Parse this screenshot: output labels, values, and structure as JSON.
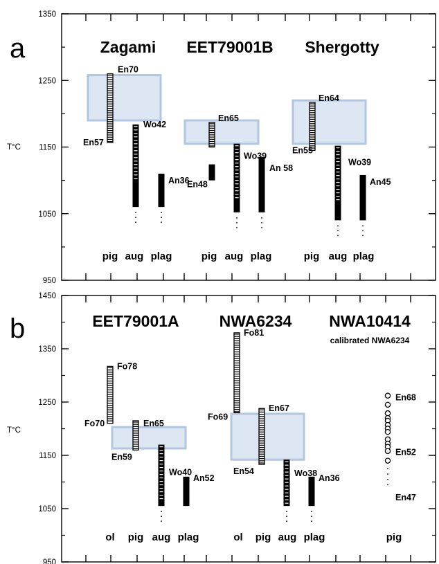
{
  "chart_data": [
    {
      "type": "range",
      "panel_label": "a",
      "ylabel": "T°C",
      "ylim": [
        950,
        1350
      ],
      "yticks": [
        950,
        1050,
        1150,
        1250,
        1350
      ],
      "groups": [
        {
          "title": "Zagami",
          "categories": [
            "pig",
            "aug",
            "plag"
          ]
        },
        {
          "title": "EET79001B",
          "categories": [
            "pig",
            "aug",
            "plag"
          ]
        },
        {
          "title": "Shergotty",
          "categories": [
            "pig",
            "aug",
            "plag"
          ]
        }
      ],
      "bars": [
        {
          "group": 0,
          "category": "pig",
          "from": 1157,
          "to": 1260,
          "style": "hatched",
          "top_label": "En70",
          "bottom_label": "En57"
        },
        {
          "group": 0,
          "category": "aug",
          "from": 1060,
          "to": 1184,
          "style": "solid_dashes",
          "top_label": "Wo42",
          "dotted_below": true
        },
        {
          "group": 0,
          "category": "plag",
          "from": 1060,
          "to": 1110,
          "style": "solid",
          "top_label": "An36",
          "dotted_below": true
        },
        {
          "group": 1,
          "category": "pig",
          "from": 1150,
          "to": 1187,
          "style": "hatched",
          "top_label": "En65"
        },
        {
          "group": 1,
          "category": "pig_low",
          "from": 1100,
          "to": 1124,
          "style": "solid",
          "bottom_label": "En48"
        },
        {
          "group": 1,
          "category": "aug",
          "from": 1052,
          "to": 1155,
          "style": "solid_dashes",
          "top_label": "Wo39",
          "dotted_below": true
        },
        {
          "group": 1,
          "category": "plag",
          "from": 1052,
          "to": 1135,
          "style": "solid",
          "top_label": "An 58",
          "dotted_below": true
        },
        {
          "group": 2,
          "category": "pig",
          "from": 1145,
          "to": 1217,
          "style": "hatched",
          "top_label": "En64",
          "bottom_label": "En55"
        },
        {
          "group": 2,
          "category": "aug",
          "from": 1040,
          "to": 1152,
          "style": "solid_dashes",
          "top_label": "Wo39",
          "dotted_below": true
        },
        {
          "group": 2,
          "category": "plag",
          "from": 1040,
          "to": 1108,
          "style": "solid",
          "top_label": "An45",
          "dotted_below": true
        }
      ],
      "boxes": [
        {
          "group": 0,
          "from": 1190,
          "to": 1258
        },
        {
          "group": 1,
          "from": 1155,
          "to": 1190
        },
        {
          "group": 2,
          "from": 1155,
          "to": 1220
        }
      ]
    },
    {
      "type": "range",
      "panel_label": "b",
      "ylabel": "T°C",
      "ylim": [
        950,
        1450
      ],
      "yticks": [
        950,
        1050,
        1150,
        1250,
        1350,
        1450
      ],
      "groups": [
        {
          "title": "EET79001A",
          "categories": [
            "ol",
            "pig",
            "aug",
            "plag"
          ]
        },
        {
          "title": "NWA6234",
          "categories": [
            "ol",
            "pig",
            "aug",
            "plag"
          ]
        },
        {
          "title": "NWA10414",
          "subtitle": "calibrated NWA6234",
          "categories": [
            "pig"
          ]
        }
      ],
      "bars": [
        {
          "group": 0,
          "category": "ol",
          "from": 1210,
          "to": 1317,
          "style": "hatched",
          "top_label": "Fo78",
          "bottom_label": "Fo70"
        },
        {
          "group": 0,
          "category": "pig",
          "from": 1160,
          "to": 1215,
          "style": "hatched",
          "top_label": "En65",
          "bottom_label": "En59"
        },
        {
          "group": 0,
          "category": "aug",
          "from": 1055,
          "to": 1170,
          "style": "solid_dashes",
          "top_label": "Wo40",
          "dotted_below": true
        },
        {
          "group": 0,
          "category": "plag",
          "from": 1055,
          "to": 1110,
          "style": "solid",
          "top_label": "An52"
        },
        {
          "group": 1,
          "category": "ol",
          "from": 1230,
          "to": 1380,
          "style": "hatched",
          "top_label": "Fo81",
          "bottom_label": "Fo69"
        },
        {
          "group": 1,
          "category": "pig",
          "from": 1133,
          "to": 1238,
          "style": "hatched",
          "top_label": "En67",
          "bottom_label": "En54"
        },
        {
          "group": 1,
          "category": "aug",
          "from": 1055,
          "to": 1142,
          "style": "solid_dashes",
          "top_label": "Wo38",
          "dotted_below": true
        },
        {
          "group": 1,
          "category": "plag",
          "from": 1055,
          "to": 1110,
          "style": "solid",
          "top_label": "An36",
          "dotted_below": true
        }
      ],
      "boxes": [
        {
          "group": 0,
          "from": 1163,
          "to": 1203
        },
        {
          "group": 1,
          "from": 1142,
          "to": 1228
        }
      ],
      "circles": {
        "group": 2,
        "category": "pig",
        "values": [
          1262,
          1245,
          1229,
          1220,
          1215,
          1207,
          1200,
          1194,
          1180,
          1172,
          1166,
          1158,
          1140
        ],
        "dots_below": [
          1125,
          1115,
          1105,
          1095
        ],
        "labels": [
          {
            "text": "En68",
            "value": 1260
          },
          {
            "text": "En52",
            "value": 1157
          },
          {
            "text": "En47",
            "value": 1072
          }
        ]
      }
    }
  ]
}
